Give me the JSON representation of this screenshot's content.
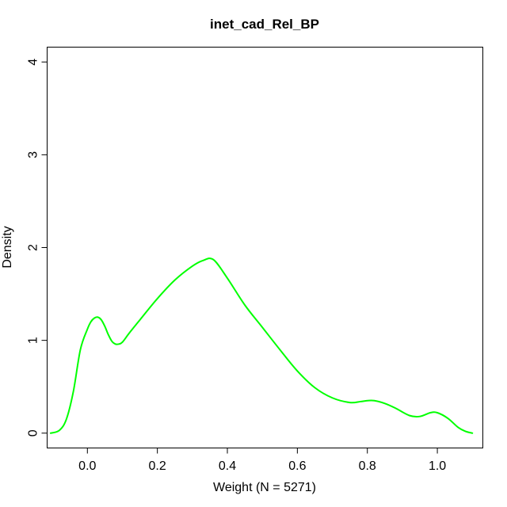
{
  "chart_data": {
    "type": "line",
    "title": "inet_cad_Rel_BP",
    "xlabel": "Weight (N = 5271)",
    "ylabel": "Density",
    "xlim": [
      -0.115,
      1.13
    ],
    "ylim": [
      -0.16,
      4.16
    ],
    "x_ticks": [
      0.0,
      0.2,
      0.4,
      0.6,
      0.8,
      1.0
    ],
    "x_tick_labels": [
      "0.0",
      "0.2",
      "0.4",
      "0.6",
      "0.8",
      "1.0"
    ],
    "y_ticks": [
      0,
      1,
      2,
      3,
      4
    ],
    "y_tick_labels": [
      "0",
      "1",
      "2",
      "3",
      "4"
    ],
    "grid": false,
    "series": [
      {
        "color": "#00ff00",
        "x": [
          -0.105,
          -0.08,
          -0.06,
          -0.04,
          -0.02,
          0.0,
          0.01,
          0.02,
          0.03,
          0.04,
          0.05,
          0.06,
          0.07,
          0.08,
          0.09,
          0.1,
          0.12,
          0.15,
          0.2,
          0.25,
          0.3,
          0.33,
          0.36,
          0.4,
          0.45,
          0.5,
          0.55,
          0.6,
          0.65,
          0.7,
          0.75,
          0.78,
          0.8,
          0.82,
          0.85,
          0.88,
          0.92,
          0.95,
          0.98,
          1.0,
          1.03,
          1.06,
          1.08,
          1.1
        ],
        "y": [
          0.0,
          0.03,
          0.15,
          0.45,
          0.9,
          1.12,
          1.2,
          1.24,
          1.25,
          1.22,
          1.15,
          1.06,
          0.99,
          0.96,
          0.96,
          0.98,
          1.08,
          1.22,
          1.45,
          1.65,
          1.8,
          1.86,
          1.87,
          1.67,
          1.38,
          1.14,
          0.9,
          0.67,
          0.49,
          0.38,
          0.33,
          0.34,
          0.35,
          0.35,
          0.32,
          0.27,
          0.19,
          0.18,
          0.22,
          0.22,
          0.16,
          0.06,
          0.02,
          0.0
        ]
      }
    ]
  }
}
